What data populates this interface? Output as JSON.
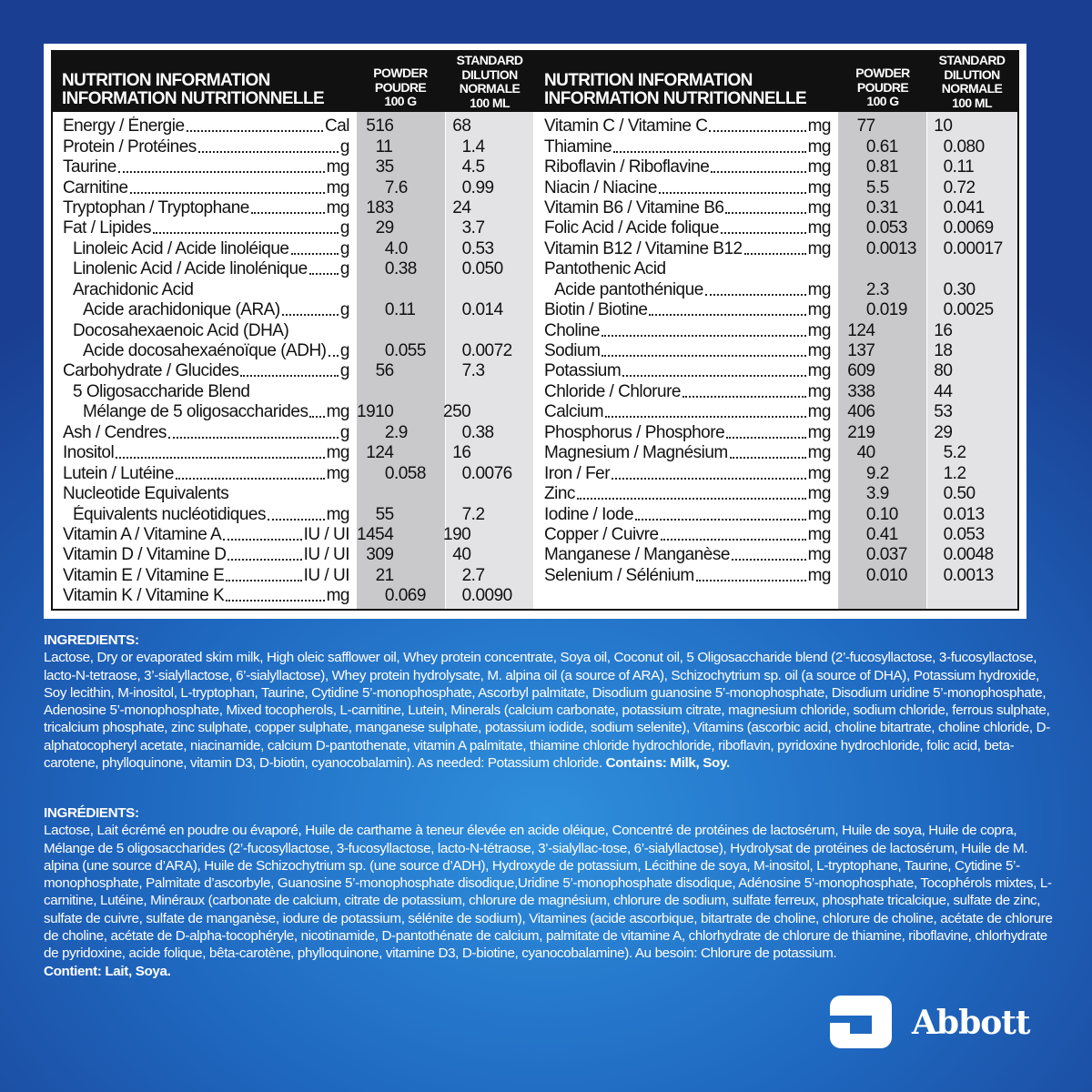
{
  "table_header": {
    "title_en": "NUTRITION INFORMATION",
    "title_fr": "INFORMATION NUTRITIONNELLE",
    "col1": [
      "POWDER",
      "POUDRE",
      "100 G"
    ],
    "col2": [
      "STANDARD",
      "DILUTION",
      "NORMALE",
      "100 ML"
    ]
  },
  "left_rows": [
    {
      "label": "Energy / Énergie",
      "unit": "Cal",
      "v1": "516",
      "v2": "68",
      "level": 0
    },
    {
      "label": "Protein / Protéines",
      "unit": "g",
      "v1": "11",
      "v2": "1.4",
      "level": 0
    },
    {
      "label": "Taurine",
      "unit": "mg",
      "v1": "35",
      "v2": "4.5",
      "level": 0
    },
    {
      "label": "Carnitine",
      "unit": "mg",
      "v1": "7.6",
      "v2": "0.99",
      "level": 0
    },
    {
      "label": "Tryptophan / Tryptophane",
      "unit": "mg",
      "v1": "183",
      "v2": "24",
      "level": 0
    },
    {
      "label": "Fat / Lipides",
      "unit": "g",
      "v1": "29",
      "v2": "3.7",
      "level": 0
    },
    {
      "label": "Linoleic Acid / Acide linoléique",
      "unit": "g",
      "v1": "4.0",
      "v2": "0.53",
      "level": 1
    },
    {
      "label": "Linolenic Acid / Acide linolénique",
      "unit": "g",
      "v1": "0.38",
      "v2": "0.050",
      "level": 1
    },
    {
      "label": "Arachidonic Acid",
      "unit": "",
      "v1": "",
      "v2": "",
      "level": 1
    },
    {
      "label": "Acide arachidonique (ARA)",
      "unit": "g",
      "v1": "0.11",
      "v2": "0.014",
      "level": 2
    },
    {
      "label": "Docosahexaenoic Acid (DHA)",
      "unit": "",
      "v1": "",
      "v2": "",
      "level": 1
    },
    {
      "label": "Acide docosahexaénoïque (ADH)",
      "unit": "g",
      "v1": "0.055",
      "v2": "0.0072",
      "level": 2
    },
    {
      "label": "Carbohydrate / Glucides",
      "unit": "g",
      "v1": "56",
      "v2": "7.3",
      "level": 0
    },
    {
      "label": "5 Oligosaccharide Blend",
      "unit": "",
      "v1": "",
      "v2": "",
      "level": 1
    },
    {
      "label": "Mélange de 5 oligosaccharides",
      "unit": "mg",
      "v1": "1910",
      "v2": "250",
      "level": 2
    },
    {
      "label": "Ash / Cendres",
      "unit": "g",
      "v1": "2.9",
      "v2": "0.38",
      "level": 0
    },
    {
      "label": "Inositol",
      "unit": "mg",
      "v1": "124",
      "v2": "16",
      "level": 0
    },
    {
      "label": "Lutein / Lutéine",
      "unit": "mg",
      "v1": "0.058",
      "v2": "0.0076",
      "level": 0
    },
    {
      "label": "Nucleotide Equivalents",
      "unit": "",
      "v1": "",
      "v2": "",
      "level": 0
    },
    {
      "label": "Équivalents nucléotidiques",
      "unit": "mg",
      "v1": "55",
      "v2": "7.2",
      "level": 1
    },
    {
      "label": "Vitamin A / Vitamine A",
      "unit": "IU / UI",
      "v1": "1454",
      "v2": "190",
      "level": 0
    },
    {
      "label": "Vitamin D / Vitamine D",
      "unit": "IU / UI",
      "v1": "309",
      "v2": "40",
      "level": 0
    },
    {
      "label": "Vitamin E / Vitamine E",
      "unit": "IU / UI",
      "v1": "21",
      "v2": "2.7",
      "level": 0
    },
    {
      "label": "Vitamin K / Vitamine K",
      "unit": "mg",
      "v1": "0.069",
      "v2": "0.0090",
      "level": 0
    }
  ],
  "right_rows": [
    {
      "label": "Vitamin C / Vitamine C",
      "unit": "mg",
      "v1": "77",
      "v2": "10",
      "level": 0
    },
    {
      "label": "Thiamine",
      "unit": "mg",
      "v1": "0.61",
      "v2": "0.080",
      "level": 0
    },
    {
      "label": "Riboflavin / Riboflavine",
      "unit": "mg",
      "v1": "0.81",
      "v2": "0.11",
      "level": 0
    },
    {
      "label": "Niacin / Niacine",
      "unit": "mg",
      "v1": "5.5",
      "v2": "0.72",
      "level": 0
    },
    {
      "label": "Vitamin B6 / Vitamine B6",
      "unit": "mg",
      "v1": "0.31",
      "v2": "0.041",
      "level": 0
    },
    {
      "label": "Folic Acid / Acide folique",
      "unit": "mg",
      "v1": "0.053",
      "v2": "0.0069",
      "level": 0
    },
    {
      "label": "Vitamin B12 / Vitamine B12",
      "unit": "mg",
      "v1": "0.0013",
      "v2": "0.00017",
      "level": 0
    },
    {
      "label": "Pantothenic Acid",
      "unit": "",
      "v1": "",
      "v2": "",
      "level": 0
    },
    {
      "label": "Acide pantothénique",
      "unit": "mg",
      "v1": "2.3",
      "v2": "0.30",
      "level": 1
    },
    {
      "label": "Biotin / Biotine",
      "unit": "mg",
      "v1": "0.019",
      "v2": "0.0025",
      "level": 0
    },
    {
      "label": "Choline",
      "unit": "mg",
      "v1": "124",
      "v2": "16",
      "level": 0
    },
    {
      "label": "Sodium",
      "unit": "mg",
      "v1": "137",
      "v2": "18",
      "level": 0
    },
    {
      "label": "Potassium",
      "unit": "mg",
      "v1": "609",
      "v2": "80",
      "level": 0
    },
    {
      "label": "Chloride / Chlorure",
      "unit": "mg",
      "v1": "338",
      "v2": "44",
      "level": 0
    },
    {
      "label": "Calcium",
      "unit": "mg",
      "v1": "406",
      "v2": "53",
      "level": 0
    },
    {
      "label": "Phosphorus / Phosphore",
      "unit": "mg",
      "v1": "219",
      "v2": "29",
      "level": 0
    },
    {
      "label": "Magnesium / Magnésium",
      "unit": "mg",
      "v1": "40",
      "v2": "5.2",
      "level": 0
    },
    {
      "label": "Iron / Fer",
      "unit": "mg",
      "v1": "9.2",
      "v2": "1.2",
      "level": 0
    },
    {
      "label": "Zinc",
      "unit": "mg",
      "v1": "3.9",
      "v2": "0.50",
      "level": 0
    },
    {
      "label": "Iodine / Iode",
      "unit": "mg",
      "v1": "0.10",
      "v2": "0.013",
      "level": 0
    },
    {
      "label": "Copper / Cuivre",
      "unit": "mg",
      "v1": "0.41",
      "v2": "0.053",
      "level": 0
    },
    {
      "label": "Manganese / Manganèse",
      "unit": "mg",
      "v1": "0.037",
      "v2": "0.0048",
      "level": 0
    },
    {
      "label": "Selenium / Sélénium",
      "unit": "mg",
      "v1": "0.010",
      "v2": "0.0013",
      "level": 0
    }
  ],
  "ingredients_en": {
    "heading": "INGREDIENTS:",
    "text": "Lactose, Dry or evaporated skim milk, High oleic safflower oil, Whey protein concentrate, Soya oil, Coconut oil, 5 Oligosaccharide blend (2’-fucosyllactose, 3-fucosyllactose, lacto-N-tetraose, 3’-sialyllactose, 6’-sialyllactose), Whey protein hydrolysate, M. alpina oil (a source of ARA), Schizochytrium sp. oil (a source of DHA), Potassium hydroxide, Soy lecithin, M-inositol, L-tryptophan, Taurine, Cytidine 5’-monophosphate, Ascorbyl palmitate, Disodium guanosine 5’-monophosphate, Disodium uridine 5’-monophosphate, Adenosine 5’-monophosphate, Mixed tocopherols, L-carnitine, Lutein, Minerals (calcium carbonate, potassium citrate, magnesium chloride, sodium chloride, ferrous sulphate, tricalcium phosphate, zinc sulphate, copper sulphate, manganese sulphate, potassium iodide, sodium selenite), Vitamins (ascorbic acid, choline bitartrate, choline chloride, D-alphatocopheryl acetate, niacinamide, calcium D-pantothenate, vitamin A palmitate, thiamine chloride hydrochloride, riboflavin, pyridoxine hydrochloride, folic acid, beta-carotene, phylloquinone, vitamin D3, D-biotin, cyanocobalamin). As needed: Potassium chloride. ",
    "contains": "Contains: Milk, Soy."
  },
  "ingredients_fr": {
    "heading": "INGRÉDIENTS:",
    "text": "Lactose, Lait écrémé en poudre ou évaporé, Huile de carthame à teneur élevée en acide oléique, Concentré de protéines de lactosérum, Huile de soya, Huile de copra, Mélange de 5 oligosaccharides (2’-fucosyllactose, 3-fucosyllactose, lacto-N-tétraose, 3’-sialyllac-tose, 6’-sialyllactose), Hydrolysat de protéines de lactosérum, Huile de M. alpina (une source d’ARA), Huile de Schizochytrium sp. (une source d’ADH), Hydroxyde de potassium, Lécithine de soya, M-inositol, L-tryptophane, Taurine, Cytidine 5’-monophosphate, Palmitate d’ascorbyle, Guanosine 5’-monophosphate disodique,Uridine 5’-monophosphate disodique, Adénosine 5’-monophosphate, Tocophérols mixtes, L-carnitine, Lutéine, Minéraux (carbonate de calcium, citrate de potassium, chlorure de magnésium, chlorure de sodium, sulfate ferreux, phosphate tricalcique, sulfate de zinc, sulfate de cuivre, sulfate de manganèse, iodure de potassium, sélénite de sodium), Vitamines (acide ascorbique, bitartrate de choline, chlorure de choline, acétate de chlorure de choline, acétate de D-alpha-tocophéryle, nicotinamide, D-pantothénate de calcium, palmitate de vitamine A, chlorhydrate de chlorure de thiamine, riboflavine, chlorhydrate de pyridoxine, acide folique, bêta-carotène, phylloquinone, vitamine D3, D-biotine, cyanocobalamine). Au besoin: Chlorure de potassium.",
    "contains": "Contient: Lait, Soya."
  },
  "brand": {
    "name": "Abbott",
    "icon": "abbott-logo-icon"
  },
  "colors": {
    "header_bg": "#111111",
    "col1_bg": "#c9c9cc",
    "col2_bg": "#e3e3e6",
    "background": "#1f68c0"
  }
}
